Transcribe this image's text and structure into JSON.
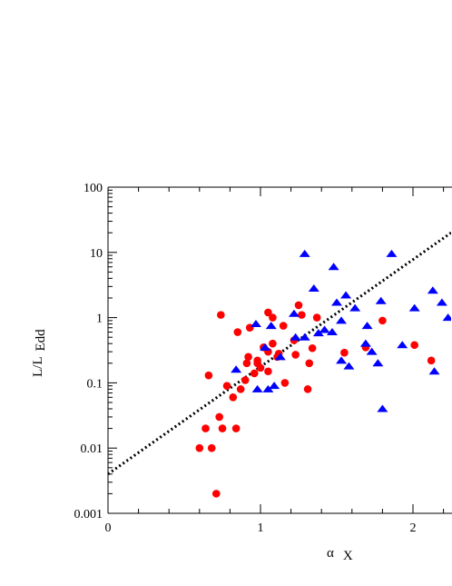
{
  "chart_data": {
    "type": "scatter",
    "xlabel": {
      "main": "α",
      "sub": "X"
    },
    "ylabel": {
      "main": "L/L",
      "sub": "Edd"
    },
    "xlim": [
      0,
      2.25
    ],
    "ylim": [
      0.001,
      100
    ],
    "y_scale": "log",
    "x_ticks": [
      0,
      1,
      2
    ],
    "y_ticks": [
      {
        "value": 0.001,
        "label": "0.001"
      },
      {
        "value": 0.01,
        "label": "0.01"
      },
      {
        "value": 0.1,
        "label": "0.1"
      },
      {
        "value": 1,
        "label": "1"
      },
      {
        "value": 10,
        "label": "10"
      },
      {
        "value": 100,
        "label": "100"
      }
    ],
    "series": [
      {
        "marker": "circle",
        "color": "#ff0000",
        "points": [
          [
            0.6,
            0.01
          ],
          [
            0.64,
            0.02
          ],
          [
            0.66,
            0.13
          ],
          [
            0.68,
            0.01
          ],
          [
            0.71,
            0.002
          ],
          [
            0.73,
            0.03
          ],
          [
            0.74,
            1.1
          ],
          [
            0.75,
            0.02
          ],
          [
            0.78,
            0.09
          ],
          [
            0.82,
            0.06
          ],
          [
            0.84,
            0.02
          ],
          [
            0.85,
            0.6
          ],
          [
            0.87,
            0.08
          ],
          [
            0.9,
            0.11
          ],
          [
            0.91,
            0.2
          ],
          [
            0.92,
            0.25
          ],
          [
            0.93,
            0.7
          ],
          [
            0.96,
            0.14
          ],
          [
            0.98,
            0.2
          ],
          [
            0.98,
            0.22
          ],
          [
            1.0,
            0.17
          ],
          [
            1.02,
            0.35
          ],
          [
            1.05,
            0.15
          ],
          [
            1.05,
            0.3
          ],
          [
            1.05,
            1.2
          ],
          [
            1.08,
            0.4
          ],
          [
            1.08,
            1.0
          ],
          [
            1.11,
            0.25
          ],
          [
            1.12,
            0.28
          ],
          [
            1.15,
            0.75
          ],
          [
            1.16,
            0.1
          ],
          [
            1.22,
            0.45
          ],
          [
            1.23,
            0.27
          ],
          [
            1.25,
            1.55
          ],
          [
            1.27,
            1.1
          ],
          [
            1.31,
            0.08
          ],
          [
            1.32,
            0.2
          ],
          [
            1.34,
            0.34
          ],
          [
            1.37,
            1.0
          ],
          [
            1.55,
            0.29
          ],
          [
            1.69,
            0.35
          ],
          [
            1.8,
            0.9
          ],
          [
            2.01,
            0.38
          ],
          [
            2.12,
            0.22
          ]
        ]
      },
      {
        "marker": "triangle",
        "color": "#0000ff",
        "points": [
          [
            0.84,
            0.16
          ],
          [
            0.97,
            0.8
          ],
          [
            0.98,
            0.08
          ],
          [
            1.03,
            0.35
          ],
          [
            1.05,
            0.08
          ],
          [
            1.07,
            0.75
          ],
          [
            1.09,
            0.09
          ],
          [
            1.13,
            0.25
          ],
          [
            1.22,
            1.15
          ],
          [
            1.23,
            0.5
          ],
          [
            1.29,
            9.5
          ],
          [
            1.29,
            0.5
          ],
          [
            1.35,
            2.8
          ],
          [
            1.38,
            0.58
          ],
          [
            1.42,
            0.65
          ],
          [
            1.47,
            0.6
          ],
          [
            1.48,
            6.0
          ],
          [
            1.5,
            1.7
          ],
          [
            1.53,
            0.22
          ],
          [
            1.53,
            0.9
          ],
          [
            1.56,
            2.2
          ],
          [
            1.58,
            0.18
          ],
          [
            1.62,
            1.4
          ],
          [
            1.69,
            0.4
          ],
          [
            1.7,
            0.75
          ],
          [
            1.73,
            0.3
          ],
          [
            1.77,
            0.2
          ],
          [
            1.79,
            1.8
          ],
          [
            1.8,
            0.04
          ],
          [
            1.86,
            9.5
          ],
          [
            1.93,
            0.38
          ],
          [
            2.01,
            1.4
          ],
          [
            2.13,
            2.6
          ],
          [
            2.14,
            0.15
          ],
          [
            2.19,
            1.7
          ],
          [
            2.23,
            1.0
          ]
        ]
      }
    ],
    "fit_line": {
      "style": "dotted",
      "color": "#000000",
      "x": [
        0,
        2.25
      ],
      "y": [
        0.004,
        20
      ]
    }
  }
}
